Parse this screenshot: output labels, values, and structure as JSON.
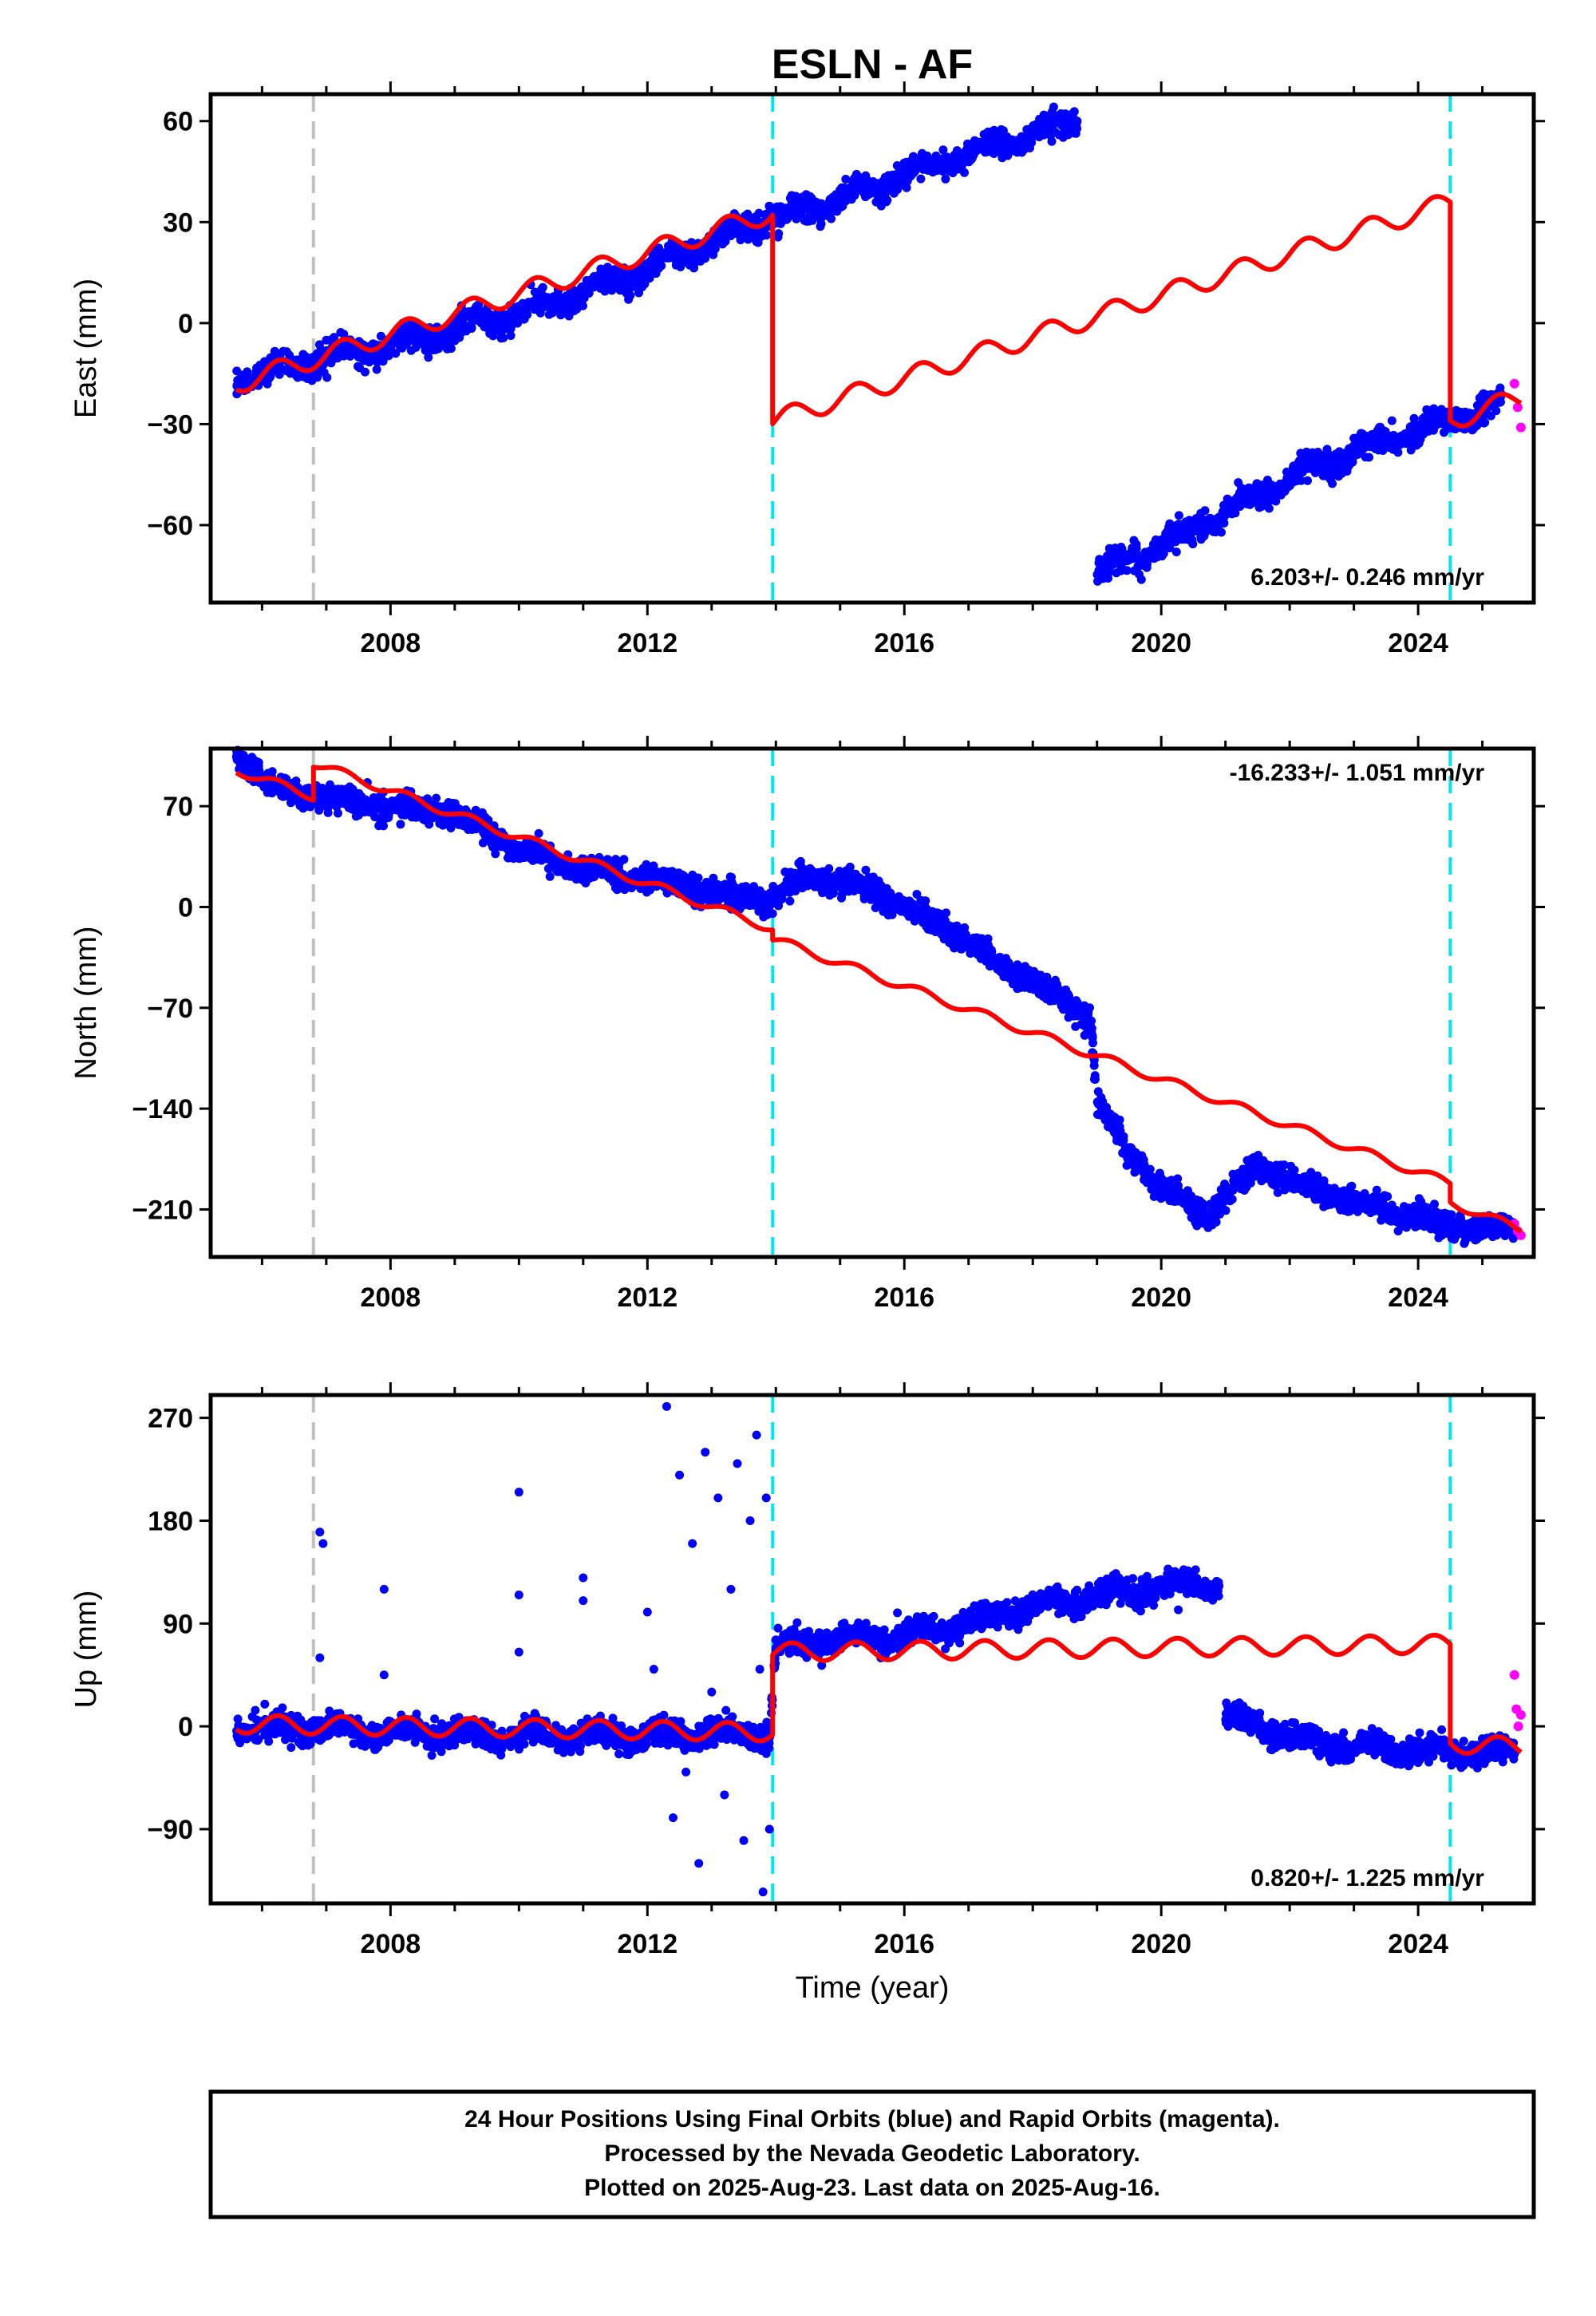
{
  "title": "ESLN - AF",
  "xlabel": "Time (year)",
  "x_ticks": [
    2008,
    2012,
    2016,
    2020,
    2024
  ],
  "footer": {
    "line1": "24 Hour Positions Using Final Orbits (blue) and Rapid Orbits (magenta).",
    "line2": "Processed by the Nevada Geodetic Laboratory.",
    "line3": "Plotted on 2025-Aug-23. Last data on 2025-Aug-16."
  },
  "colors": {
    "final_orbits": "#0000ff",
    "rapid_orbits": "#ff00ff",
    "model": "#ff0000",
    "equipment_change": "#00e5ee",
    "event": "#c0c0c0"
  },
  "chart_data": [
    {
      "type": "scatter",
      "component": "east",
      "ylabel": "East (mm)",
      "xlim": [
        2005.2,
        2025.8
      ],
      "ylim": [
        -83,
        68
      ],
      "y_ticks": [
        60,
        30,
        0,
        -30,
        -60
      ],
      "rate": "6.203+/- 0.246 mm/yr",
      "rate_position": "bottom-right",
      "event_lines": {
        "gray": [
          2006.8
        ],
        "cyan": [
          2013.95,
          2024.5
        ]
      },
      "final_orbit_trend": [
        [
          2005.6,
          -17
        ],
        [
          2007.0,
          -10
        ],
        [
          2008.0,
          -7
        ],
        [
          2009.0,
          -2
        ],
        [
          2010.0,
          3
        ],
        [
          2011.0,
          9
        ],
        [
          2012.0,
          16
        ],
        [
          2013.0,
          24
        ],
        [
          2013.9,
          32
        ],
        [
          2014.0,
          31
        ],
        [
          2015.0,
          37
        ],
        [
          2016.0,
          44
        ],
        [
          2017.0,
          50
        ],
        [
          2018.0,
          56
        ],
        [
          2018.7,
          60
        ],
        [
          2019.0,
          -74
        ],
        [
          2020.0,
          -66
        ],
        [
          2021.0,
          -56
        ],
        [
          2022.0,
          -46
        ],
        [
          2023.0,
          -38
        ],
        [
          2024.0,
          -32
        ],
        [
          2024.6,
          -28
        ],
        [
          2025.3,
          -24
        ]
      ],
      "rapid_orbits": [
        [
          2025.5,
          -18
        ],
        [
          2025.55,
          -25
        ],
        [
          2025.6,
          -31
        ]
      ],
      "model_segments": [
        {
          "x0": 2005.6,
          "x1": 2013.95,
          "y0": -18,
          "y1": 33
        },
        {
          "x0": 2013.95,
          "x1": 2024.5,
          "y0": -29,
          "y1": 36
        },
        {
          "x0": 2024.5,
          "x1": 2025.6,
          "y0": -29,
          "y1": -22
        }
      ],
      "seasonal_amplitude": 3
    },
    {
      "type": "scatter",
      "component": "north",
      "ylabel": "North (mm)",
      "xlim": [
        2005.2,
        2025.8
      ],
      "ylim": [
        -243,
        110
      ],
      "y_ticks": [
        70,
        0,
        -70,
        -140,
        -210
      ],
      "rate": "-16.233+/- 1.051 mm/yr",
      "rate_position": "top-right",
      "event_lines": {
        "gray": [
          2006.8
        ],
        "cyan": [
          2013.95,
          2024.5
        ]
      },
      "final_orbit_trend": [
        [
          2005.6,
          105
        ],
        [
          2006.2,
          82
        ],
        [
          2007.0,
          75
        ],
        [
          2008.0,
          70
        ],
        [
          2009.0,
          65
        ],
        [
          2010.0,
          40
        ],
        [
          2011.0,
          25
        ],
        [
          2012.0,
          20
        ],
        [
          2013.0,
          10
        ],
        [
          2013.9,
          5
        ],
        [
          2014.5,
          22
        ],
        [
          2015.5,
          12
        ],
        [
          2016.5,
          -10
        ],
        [
          2017.5,
          -40
        ],
        [
          2018.5,
          -65
        ],
        [
          2018.9,
          -78
        ],
        [
          2019.0,
          -135
        ],
        [
          2019.5,
          -170
        ],
        [
          2020.0,
          -195
        ],
        [
          2020.7,
          -215
        ],
        [
          2021.0,
          -200
        ],
        [
          2021.5,
          -180
        ],
        [
          2022.0,
          -190
        ],
        [
          2023.0,
          -205
        ],
        [
          2024.0,
          -215
        ],
        [
          2024.5,
          -222
        ],
        [
          2025.5,
          -224
        ]
      ],
      "rapid_orbits": [
        [
          2025.5,
          -220
        ],
        [
          2025.55,
          -225
        ],
        [
          2025.6,
          -228
        ]
      ],
      "model_segments": [
        {
          "x0": 2005.6,
          "x1": 2006.8,
          "y0": 95,
          "y1": 77
        },
        {
          "x0": 2006.8,
          "x1": 2013.95,
          "y0": 100,
          "y1": -15
        },
        {
          "x0": 2013.95,
          "x1": 2024.5,
          "y0": -22,
          "y1": -192
        },
        {
          "x0": 2024.5,
          "x1": 2025.6,
          "y0": -205,
          "y1": -224
        }
      ],
      "seasonal_amplitude": 3
    },
    {
      "type": "scatter",
      "component": "up",
      "ylabel": "Up (mm)",
      "xlim": [
        2005.2,
        2025.8
      ],
      "ylim": [
        -155,
        290
      ],
      "y_ticks": [
        270,
        180,
        90,
        0,
        -90
      ],
      "rate": "0.820+/- 1.225 mm/yr",
      "rate_position": "bottom-right",
      "event_lines": {
        "gray": [
          2006.8
        ],
        "cyan": [
          2013.95,
          2024.5
        ]
      },
      "final_orbit_trend": [
        [
          2005.6,
          0
        ],
        [
          2008.0,
          -5
        ],
        [
          2010.0,
          -8
        ],
        [
          2012.0,
          -8
        ],
        [
          2013.9,
          -5
        ],
        [
          2014.0,
          70
        ],
        [
          2015.0,
          75
        ],
        [
          2016.0,
          80
        ],
        [
          2017.0,
          90
        ],
        [
          2018.0,
          105
        ],
        [
          2019.0,
          115
        ],
        [
          2020.0,
          122
        ],
        [
          2020.9,
          125
        ],
        [
          2021.0,
          10
        ],
        [
          2021.8,
          -5
        ],
        [
          2022.5,
          -15
        ],
        [
          2023.5,
          -20
        ],
        [
          2024.5,
          -22
        ],
        [
          2025.5,
          -22
        ]
      ],
      "rapid_orbits": [
        [
          2025.5,
          45
        ],
        [
          2025.53,
          15
        ],
        [
          2025.56,
          0
        ],
        [
          2025.6,
          10
        ]
      ],
      "outliers": [
        [
          2006.9,
          170
        ],
        [
          2006.95,
          160
        ],
        [
          2006.9,
          60
        ],
        [
          2007.9,
          120
        ],
        [
          2007.9,
          45
        ],
        [
          2010.0,
          205
        ],
        [
          2010.0,
          115
        ],
        [
          2010.0,
          65
        ],
        [
          2011.0,
          130
        ],
        [
          2011.0,
          110
        ],
        [
          2012.0,
          100
        ],
        [
          2012.1,
          50
        ],
        [
          2012.2,
          -15
        ],
        [
          2012.3,
          280
        ],
        [
          2012.4,
          -80
        ],
        [
          2012.5,
          220
        ],
        [
          2012.6,
          -40
        ],
        [
          2012.7,
          160
        ],
        [
          2012.8,
          -120
        ],
        [
          2012.9,
          240
        ],
        [
          2013.0,
          30
        ],
        [
          2013.1,
          200
        ],
        [
          2013.2,
          -60
        ],
        [
          2013.3,
          120
        ],
        [
          2013.4,
          230
        ],
        [
          2013.5,
          -100
        ],
        [
          2013.6,
          180
        ],
        [
          2013.7,
          255
        ],
        [
          2013.75,
          50
        ],
        [
          2013.8,
          -145
        ],
        [
          2013.85,
          200
        ],
        [
          2013.9,
          -90
        ]
      ],
      "model_segments": [
        {
          "x0": 2005.6,
          "x1": 2013.95,
          "y0": 2,
          "y1": -5
        },
        {
          "x0": 2013.95,
          "x1": 2024.5,
          "y0": 65,
          "y1": 72
        },
        {
          "x0": 2024.5,
          "x1": 2025.6,
          "y0": -15,
          "y1": -18
        }
      ],
      "seasonal_amplitude": 8
    }
  ]
}
